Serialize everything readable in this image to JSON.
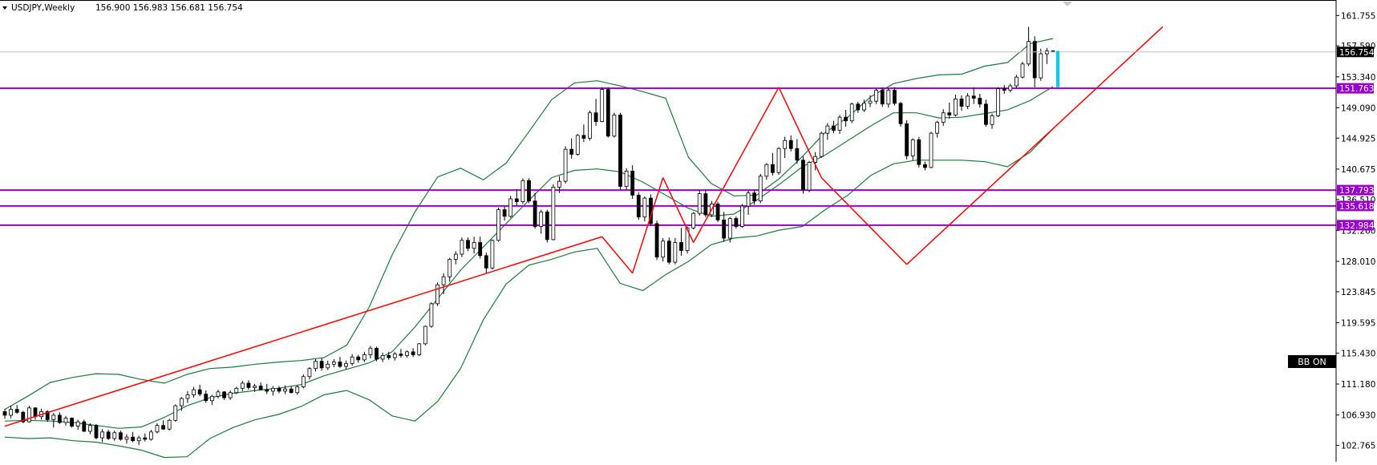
{
  "chart_data": {
    "type": "candlestick",
    "symbol": "USDJPY,Weekly",
    "ohlc_header": "156.900 156.983 156.681 156.754",
    "y_axis": {
      "ticks": [
        161.755,
        157.59,
        153.34,
        149.09,
        144.925,
        140.675,
        136.51,
        132.26,
        128.01,
        123.845,
        119.595,
        115.43,
        111.18,
        106.93,
        102.765
      ],
      "tick_labels": [
        "161.755",
        "157.590",
        "153.340",
        "149.090",
        "144.925",
        "140.675",
        "136.510",
        "132.260",
        "128.010",
        "123.845",
        "119.595",
        "115.430",
        "111.180",
        "106.930",
        "102.765"
      ],
      "range": [
        101.5,
        163.0
      ]
    },
    "current_price": {
      "value": 156.754,
      "label": "156.754"
    },
    "horizontal_levels": [
      {
        "value": 151.763,
        "label": "151.763",
        "color": "#9900cc"
      },
      {
        "value": 137.793,
        "label": "137.793",
        "color": "#9900cc"
      },
      {
        "value": 135.618,
        "label": "135.618",
        "color": "#9900cc"
      },
      {
        "value": 132.984,
        "label": "132.984",
        "color": "#9900cc"
      }
    ],
    "candles": [
      [
        107.4,
        107.8,
        106.4,
        106.9
      ],
      [
        106.9,
        108.2,
        106.5,
        107.7
      ],
      [
        107.7,
        108.3,
        107.1,
        107.3
      ],
      [
        107.3,
        107.5,
        105.8,
        106.0
      ],
      [
        106.0,
        108.2,
        105.9,
        107.9
      ],
      [
        107.9,
        108.0,
        106.3,
        106.7
      ],
      [
        106.7,
        107.8,
        106.3,
        107.4
      ],
      [
        107.4,
        107.6,
        106.0,
        106.3
      ],
      [
        106.3,
        107.2,
        105.2,
        106.9
      ],
      [
        106.9,
        107.3,
        105.7,
        105.9
      ],
      [
        105.9,
        106.8,
        105.5,
        106.5
      ],
      [
        106.5,
        106.6,
        105.2,
        105.4
      ],
      [
        105.4,
        106.3,
        104.9,
        106.0
      ],
      [
        106.0,
        106.3,
        104.6,
        104.7
      ],
      [
        104.7,
        105.8,
        104.3,
        105.5
      ],
      [
        105.5,
        105.7,
        103.6,
        103.8
      ],
      [
        103.8,
        105.0,
        103.2,
        104.6
      ],
      [
        104.6,
        104.9,
        103.5,
        103.7
      ],
      [
        103.7,
        104.8,
        103.4,
        104.5
      ],
      [
        104.5,
        104.8,
        103.4,
        103.6
      ],
      [
        103.6,
        104.3,
        103.0,
        103.9
      ],
      [
        103.9,
        104.6,
        103.2,
        103.4
      ],
      [
        103.4,
        104.1,
        102.8,
        103.8
      ],
      [
        103.8,
        104.4,
        103.3,
        103.6
      ],
      [
        103.6,
        104.9,
        103.4,
        104.6
      ],
      [
        104.6,
        105.8,
        104.4,
        105.5
      ],
      [
        105.5,
        106.2,
        104.9,
        105.0
      ],
      [
        105.0,
        106.4,
        104.8,
        106.2
      ],
      [
        106.2,
        108.4,
        106.0,
        108.2
      ],
      [
        108.2,
        109.4,
        107.5,
        109.2
      ],
      [
        109.2,
        110.2,
        108.6,
        109.7
      ],
      [
        109.7,
        110.8,
        109.3,
        110.4
      ],
      [
        110.4,
        111.1,
        109.5,
        109.8
      ],
      [
        109.8,
        110.3,
        108.6,
        108.9
      ],
      [
        108.9,
        109.7,
        108.3,
        109.5
      ],
      [
        109.5,
        110.4,
        109.2,
        110.1
      ],
      [
        110.1,
        110.2,
        109.0,
        109.3
      ],
      [
        109.3,
        110.3,
        109.0,
        110.0
      ],
      [
        110.0,
        110.8,
        109.8,
        110.6
      ],
      [
        110.6,
        111.6,
        110.2,
        111.3
      ],
      [
        111.3,
        111.7,
        110.4,
        110.7
      ],
      [
        110.7,
        111.2,
        110.1,
        110.9
      ],
      [
        110.9,
        111.4,
        110.3,
        110.4
      ],
      [
        110.4,
        111.2,
        109.8,
        110.2
      ],
      [
        110.2,
        110.9,
        109.6,
        110.6
      ],
      [
        110.6,
        110.9,
        109.9,
        110.2
      ],
      [
        110.2,
        111.0,
        109.8,
        110.5
      ],
      [
        110.5,
        110.9,
        109.9,
        110.0
      ],
      [
        110.0,
        111.0,
        109.7,
        110.8
      ],
      [
        110.8,
        112.5,
        110.6,
        112.2
      ],
      [
        112.2,
        113.5,
        111.8,
        113.3
      ],
      [
        113.3,
        114.6,
        112.9,
        114.3
      ],
      [
        114.3,
        114.7,
        113.0,
        113.4
      ],
      [
        113.4,
        114.4,
        113.1,
        113.9
      ],
      [
        113.9,
        114.6,
        113.5,
        114.2
      ],
      [
        114.2,
        114.9,
        113.4,
        113.6
      ],
      [
        113.6,
        114.4,
        113.2,
        114.0
      ],
      [
        114.0,
        115.3,
        113.7,
        114.9
      ],
      [
        114.9,
        115.2,
        114.1,
        114.5
      ],
      [
        114.5,
        115.6,
        114.2,
        115.2
      ],
      [
        115.2,
        116.4,
        114.7,
        116.1
      ],
      [
        116.1,
        116.3,
        114.3,
        114.6
      ],
      [
        114.6,
        115.5,
        114.2,
        115.1
      ],
      [
        115.1,
        115.6,
        114.5,
        114.8
      ],
      [
        114.8,
        115.6,
        114.4,
        115.3
      ],
      [
        115.3,
        116.0,
        114.8,
        115.1
      ],
      [
        115.1,
        115.8,
        114.8,
        115.6
      ],
      [
        115.6,
        116.1,
        114.9,
        115.2
      ],
      [
        115.2,
        116.8,
        115.0,
        116.7
      ],
      [
        116.7,
        119.2,
        116.5,
        119.1
      ],
      [
        119.1,
        122.4,
        118.9,
        122.2
      ],
      [
        122.2,
        125.1,
        121.9,
        124.8
      ],
      [
        124.8,
        126.4,
        123.5,
        125.9
      ],
      [
        125.9,
        128.5,
        125.2,
        128.3
      ],
      [
        128.3,
        129.4,
        127.6,
        129.0
      ],
      [
        129.0,
        131.3,
        128.6,
        130.9
      ],
      [
        130.9,
        131.3,
        129.4,
        129.8
      ],
      [
        129.8,
        131.4,
        129.1,
        130.6
      ],
      [
        130.6,
        131.4,
        128.4,
        128.8
      ],
      [
        128.8,
        129.2,
        126.4,
        127.1
      ],
      [
        127.1,
        131.0,
        126.9,
        130.9
      ],
      [
        130.9,
        135.4,
        130.7,
        135.1
      ],
      [
        135.1,
        135.6,
        133.6,
        134.2
      ],
      [
        134.2,
        137.0,
        134.0,
        136.6
      ],
      [
        136.6,
        137.9,
        135.6,
        136.2
      ],
      [
        136.2,
        139.4,
        135.9,
        139.1
      ],
      [
        139.1,
        139.4,
        136.0,
        136.3
      ],
      [
        136.3,
        137.4,
        132.5,
        132.8
      ],
      [
        132.8,
        135.1,
        131.8,
        134.8
      ],
      [
        134.8,
        135.1,
        130.6,
        131.0
      ],
      [
        131.0,
        138.6,
        130.9,
        138.2
      ],
      [
        138.2,
        139.7,
        137.4,
        139.0
      ],
      [
        139.0,
        143.8,
        138.7,
        143.4
      ],
      [
        143.4,
        144.9,
        142.1,
        142.7
      ],
      [
        142.7,
        145.5,
        142.5,
        145.3
      ],
      [
        145.3,
        146.8,
        144.4,
        144.9
      ],
      [
        144.9,
        148.7,
        144.6,
        148.4
      ],
      [
        148.4,
        150.3,
        146.6,
        147.2
      ],
      [
        147.2,
        151.9,
        147.1,
        151.6
      ],
      [
        151.6,
        151.9,
        145.0,
        145.2
      ],
      [
        145.2,
        148.4,
        145.0,
        148.1
      ],
      [
        148.1,
        148.4,
        137.8,
        138.3
      ],
      [
        138.3,
        140.8,
        137.8,
        140.4
      ],
      [
        140.4,
        141.2,
        136.6,
        137.1
      ],
      [
        137.1,
        137.5,
        133.7,
        134.1
      ],
      [
        134.1,
        136.9,
        133.5,
        136.7
      ],
      [
        136.7,
        137.2,
        132.9,
        133.2
      ],
      [
        133.2,
        133.6,
        128.2,
        128.6
      ],
      [
        128.6,
        131.2,
        128.0,
        130.8
      ],
      [
        130.8,
        131.3,
        127.6,
        127.9
      ],
      [
        127.9,
        131.2,
        127.6,
        130.6
      ],
      [
        130.6,
        132.6,
        128.8,
        129.5
      ],
      [
        129.5,
        132.8,
        129.1,
        132.6
      ],
      [
        132.6,
        134.8,
        132.4,
        134.6
      ],
      [
        134.6,
        137.8,
        134.3,
        137.3
      ],
      [
        137.3,
        137.9,
        134.1,
        134.4
      ],
      [
        134.4,
        136.3,
        134.1,
        135.9
      ],
      [
        135.9,
        136.2,
        133.4,
        133.7
      ],
      [
        133.7,
        134.8,
        130.7,
        131.2
      ],
      [
        131.2,
        134.1,
        130.6,
        133.9
      ],
      [
        133.9,
        134.2,
        132.5,
        132.8
      ],
      [
        132.8,
        135.9,
        132.6,
        135.6
      ],
      [
        135.6,
        137.7,
        134.4,
        137.4
      ],
      [
        137.4,
        137.9,
        135.8,
        136.3
      ],
      [
        136.3,
        140.0,
        136.0,
        139.7
      ],
      [
        139.7,
        141.5,
        139.2,
        141.3
      ],
      [
        141.3,
        142.9,
        139.8,
        140.2
      ],
      [
        140.2,
        143.7,
        139.9,
        143.5
      ],
      [
        143.5,
        145.1,
        142.2,
        144.6
      ],
      [
        144.6,
        145.3,
        143.1,
        143.5
      ],
      [
        143.5,
        144.8,
        141.4,
        141.9
      ],
      [
        141.9,
        142.4,
        137.3,
        137.8
      ],
      [
        137.8,
        141.8,
        137.5,
        141.6
      ],
      [
        141.6,
        143.0,
        140.5,
        142.4
      ],
      [
        142.4,
        145.8,
        142.2,
        145.6
      ],
      [
        145.6,
        147.0,
        144.7,
        146.6
      ],
      [
        146.6,
        147.3,
        145.6,
        146.0
      ],
      [
        146.0,
        148.1,
        145.5,
        147.8
      ],
      [
        147.8,
        148.8,
        146.5,
        147.3
      ],
      [
        147.3,
        149.8,
        147.0,
        149.6
      ],
      [
        149.6,
        149.9,
        148.4,
        148.8
      ],
      [
        148.8,
        150.2,
        148.5,
        149.7
      ],
      [
        149.7,
        150.8,
        149.2,
        150.0
      ],
      [
        150.0,
        151.7,
        149.6,
        151.5
      ],
      [
        151.5,
        151.9,
        149.2,
        149.6
      ],
      [
        149.6,
        151.8,
        149.1,
        151.5
      ],
      [
        151.5,
        151.9,
        149.4,
        149.7
      ],
      [
        149.7,
        149.9,
        146.5,
        146.9
      ],
      [
        146.9,
        147.4,
        142.0,
        142.5
      ],
      [
        142.5,
        144.9,
        141.9,
        144.7
      ],
      [
        144.7,
        145.1,
        140.9,
        141.3
      ],
      [
        141.3,
        141.7,
        140.5,
        140.9
      ],
      [
        140.9,
        145.8,
        140.8,
        145.6
      ],
      [
        145.6,
        147.3,
        145.0,
        147.1
      ],
      [
        147.1,
        148.9,
        146.6,
        148.4
      ],
      [
        148.4,
        149.8,
        147.6,
        148.1
      ],
      [
        148.1,
        150.9,
        147.9,
        150.3
      ],
      [
        150.3,
        150.8,
        148.7,
        149.3
      ],
      [
        149.3,
        151.1,
        148.9,
        150.7
      ],
      [
        150.7,
        151.9,
        149.6,
        150.4
      ],
      [
        150.4,
        151.0,
        149.1,
        149.6
      ],
      [
        149.6,
        150.2,
        146.5,
        146.8
      ],
      [
        146.8,
        148.3,
        146.2,
        148.0
      ],
      [
        148.0,
        151.9,
        147.8,
        151.7
      ],
      [
        151.7,
        152.2,
        151.0,
        151.5
      ],
      [
        151.5,
        152.4,
        151.2,
        152.1
      ],
      [
        152.1,
        153.6,
        151.8,
        153.3
      ],
      [
        153.3,
        155.4,
        153.1,
        155.1
      ],
      [
        155.1,
        160.2,
        154.8,
        158.2
      ],
      [
        158.2,
        158.9,
        151.9,
        153.2
      ],
      [
        153.2,
        157.2,
        152.8,
        156.5
      ],
      [
        156.5,
        157.3,
        155.1,
        156.9
      ],
      [
        156.9,
        156.983,
        156.681,
        156.754
      ]
    ],
    "bollinger_bands": {
      "color": "#1e7a3c",
      "upper": [
        107.7,
        109.5,
        111.4,
        112.1,
        112.6,
        112.5,
        111.8,
        111.3,
        112.5,
        113.3,
        113.5,
        113.9,
        114.2,
        114.4,
        114.8,
        116.5,
        121.8,
        128.9,
        134.8,
        139.6,
        140.8,
        139.2,
        141.5,
        145.8,
        150.2,
        152.5,
        152.8,
        152.1,
        151.3,
        150.4,
        142.3,
        138.7,
        137.0,
        137.1,
        139.4,
        142.4,
        145.7,
        147.8,
        150.6,
        152.4,
        153.1,
        153.6,
        153.7,
        154.8,
        155.3,
        157.9,
        158.6
      ],
      "middle": [
        106.1,
        106.2,
        106.1,
        105.9,
        105.5,
        105.1,
        105.3,
        106.6,
        108.2,
        109.3,
        109.9,
        110.3,
        110.6,
        111.1,
        112.3,
        113.2,
        114.1,
        115.6,
        119.0,
        122.9,
        126.8,
        130.0,
        133.2,
        136.4,
        139.5,
        140.5,
        140.7,
        140.3,
        138.9,
        137.1,
        135.3,
        134.2,
        134.5,
        136.4,
        138.6,
        141.0,
        142.6,
        144.6,
        146.6,
        148.4,
        148.4,
        147.7,
        147.8,
        148.3,
        148.8,
        150.1,
        152.0
      ],
      "lower": [
        103.9,
        103.7,
        103.8,
        103.4,
        103.2,
        102.7,
        102.1,
        101.1,
        101.2,
        103.7,
        105.2,
        106.3,
        107.0,
        108.1,
        109.7,
        110.3,
        109.0,
        106.8,
        106.1,
        108.8,
        113.3,
        120.0,
        124.9,
        127.5,
        128.3,
        129.3,
        129.8,
        125.0,
        124.0,
        126.2,
        128.0,
        130.3,
        131.2,
        131.5,
        132.3,
        132.8,
        135.1,
        137.1,
        139.8,
        141.4,
        141.9,
        141.9,
        141.9,
        141.7,
        141.0,
        143.0,
        146.2
      ]
    },
    "zigzag": {
      "color": "#ff0000",
      "points": [
        [
          0,
          105.4
        ],
        [
          98,
          131.4
        ],
        [
          103,
          126.4
        ],
        [
          108,
          139.5
        ],
        [
          113,
          130.6
        ],
        [
          127,
          151.9
        ],
        [
          134,
          139.5
        ],
        [
          148,
          127.6
        ],
        [
          190,
          160.2
        ]
      ]
    },
    "indicator_label": "BB ON",
    "grid": false,
    "legend": "none"
  }
}
